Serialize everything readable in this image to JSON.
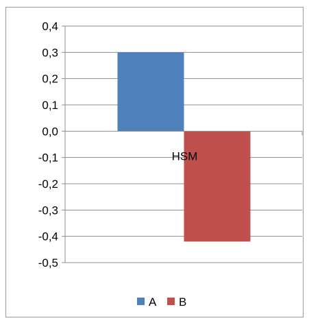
{
  "chart_data": {
    "type": "bar",
    "categories": [
      "HSM"
    ],
    "series": [
      {
        "name": "A",
        "values": [
          0.3
        ],
        "color": "#4F81BD"
      },
      {
        "name": "B",
        "values": [
          -0.42
        ],
        "color": "#C0504D"
      }
    ],
    "ylim": [
      -0.5,
      0.4
    ],
    "yticks": [
      "0,4",
      "0,3",
      "0,2",
      "0,1",
      "0,0",
      "-0,1",
      "-0,2",
      "-0,3",
      "-0,4",
      "-0,5"
    ],
    "ytick_values": [
      0.4,
      0.3,
      0.2,
      0.1,
      0.0,
      -0.1,
      -0.2,
      -0.3,
      -0.4,
      -0.5
    ],
    "grid": true,
    "legend_position": "bottom"
  }
}
